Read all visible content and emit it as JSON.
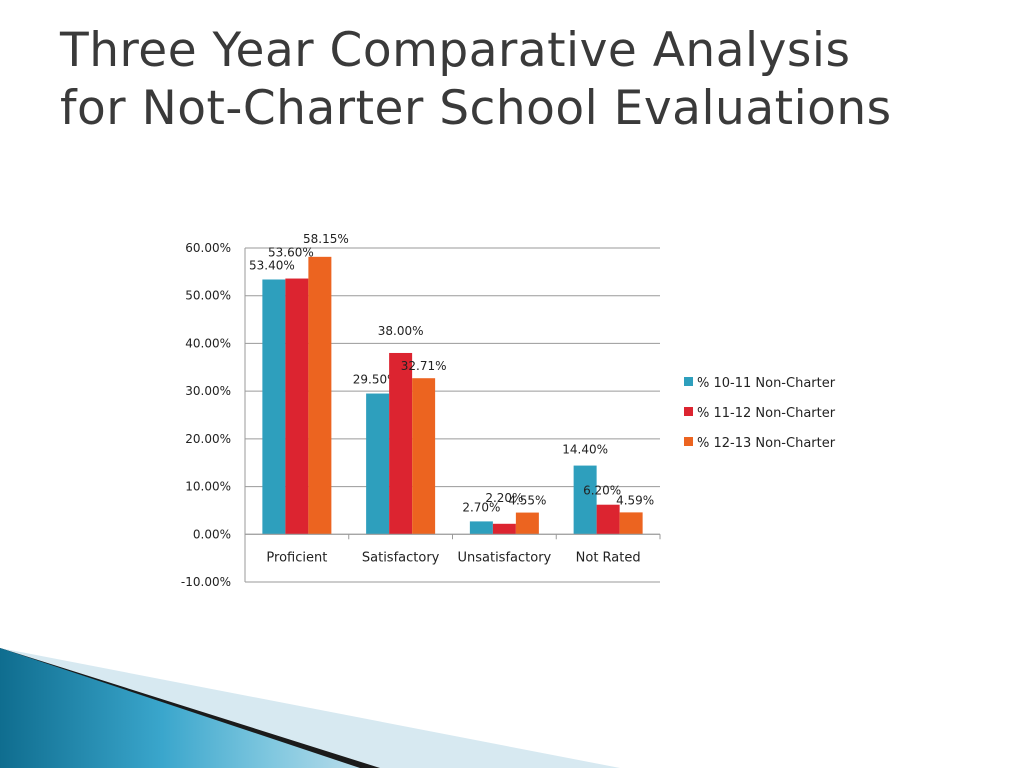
{
  "slide": {
    "title_line1": "Three Year Comparative Analysis",
    "title_line2": "for Not-Charter School Evaluations"
  },
  "chart_data": {
    "type": "bar",
    "title": "",
    "xlabel": "",
    "ylabel": "",
    "categories": [
      "Proficient",
      "Satisfactory",
      "Unsatisfactory",
      "Not Rated"
    ],
    "series": [
      {
        "name": "% 10-11 Non-Charter",
        "color": "#2e9fbd",
        "values": [
          53.4,
          29.5,
          2.7,
          14.4
        ]
      },
      {
        "name": "% 11-12 Non-Charter",
        "color": "#dc2430",
        "values": [
          53.6,
          38.0,
          2.2,
          6.2
        ]
      },
      {
        "name": "% 12-13 Non-Charter",
        "color": "#ec6420",
        "values": [
          58.15,
          32.71,
          4.55,
          4.59
        ]
      }
    ],
    "ylim": [
      -10,
      60
    ],
    "yticks": [
      60,
      50,
      40,
      30,
      20,
      10,
      0,
      -10
    ],
    "ytick_labels": [
      "60.00%",
      "50.00%",
      "40.00%",
      "30.00%",
      "20.00%",
      "10.00%",
      "0.00%",
      "-10.00%"
    ],
    "data_labels": [
      [
        "53.40%",
        "29.50%",
        "2.70%",
        "14.40%"
      ],
      [
        "53.60%",
        "38.00%",
        "2.20%",
        "6.20%"
      ],
      [
        "58.15%",
        "32.71%",
        "4.55%",
        "4.59%"
      ]
    ],
    "gridlines": true,
    "legend_position": "right"
  }
}
